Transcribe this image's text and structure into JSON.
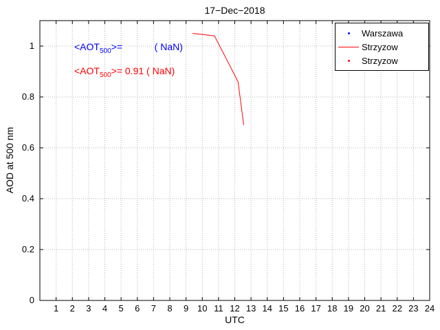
{
  "title": "17−Dec−2018",
  "axes": {
    "xlabel": "UTC",
    "ylabel": "AOD at 500 nm"
  },
  "annotations": [
    {
      "prefix": "<AOT",
      "sub": "500",
      "suffix": ">=            ( NaN)",
      "color": "#0000ff"
    },
    {
      "prefix": "<AOT",
      "sub": "500",
      "suffix": ">= 0.91 ( NaN)",
      "color": "#ff0000"
    }
  ],
  "legend": {
    "position": "top-right",
    "items": [
      {
        "label": "Warszawa",
        "marker": "dot",
        "color": "#0000ff"
      },
      {
        "label": "Strzyzow",
        "marker": "line",
        "color": "#ff0000"
      },
      {
        "label": "Strzyzow",
        "marker": "dot",
        "color": "#ff0000"
      }
    ]
  },
  "chart_data": {
    "type": "line",
    "title": "17−Dec−2018",
    "xlabel": "UTC",
    "ylabel": "AOD at 500 nm",
    "xlim": [
      0,
      24
    ],
    "ylim": [
      0,
      1.1
    ],
    "xticks": [
      1,
      2,
      3,
      4,
      5,
      6,
      7,
      8,
      9,
      10,
      11,
      12,
      13,
      14,
      15,
      16,
      17,
      18,
      19,
      20,
      21,
      22,
      23,
      24
    ],
    "yticks": [
      0,
      0.2,
      0.4,
      0.6,
      0.8,
      1
    ],
    "grid": true,
    "legend_position": "top-right",
    "series": [
      {
        "name": "Warszawa",
        "type": "scatter",
        "color": "#0000ff",
        "x": [],
        "y": []
      },
      {
        "name": "Strzyzow",
        "type": "line",
        "color": "#ff0000",
        "x": [
          9.4,
          10.75,
          12.2,
          12.55
        ],
        "y": [
          1.05,
          1.04,
          0.86,
          0.69
        ]
      },
      {
        "name": "Strzyzow",
        "type": "scatter",
        "color": "#ff0000",
        "x": [],
        "y": []
      }
    ]
  }
}
